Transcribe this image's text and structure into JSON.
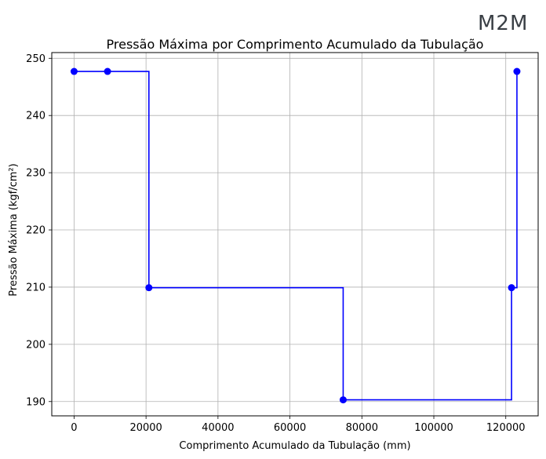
{
  "logo": {
    "text": "M2M"
  },
  "chart_data": {
    "type": "line",
    "drawstyle": "steps-post",
    "title": "Pressão Máxima por Comprimento Acumulado da Tubulação",
    "xlabel": "Comprimento Acumulado da Tubulação (mm)",
    "ylabel": "Pressão Máxima (kgf/cm²)",
    "xlim": [
      -6200,
      129000
    ],
    "ylim": [
      187.5,
      251
    ],
    "xticks": [
      0,
      20000,
      40000,
      60000,
      80000,
      100000,
      120000
    ],
    "xtick_labels": [
      "0",
      "20000",
      "40000",
      "60000",
      "80000",
      "100000",
      "120000"
    ],
    "yticks": [
      190,
      200,
      210,
      220,
      230,
      240,
      250
    ],
    "ytick_labels": [
      "190",
      "200",
      "210",
      "220",
      "230",
      "240",
      "250"
    ],
    "grid": true,
    "series": [
      {
        "color": "#0000ff",
        "marker": "circle",
        "points": [
          {
            "x": 0,
            "y": 247.7
          },
          {
            "x": 9300,
            "y": 247.7
          },
          {
            "x": 20800,
            "y": 209.9
          },
          {
            "x": 74800,
            "y": 190.3
          },
          {
            "x": 121600,
            "y": 209.9
          },
          {
            "x": 123100,
            "y": 247.7
          }
        ]
      }
    ],
    "step_segments_x": [
      0,
      9300,
      20800,
      74800,
      121600,
      123100
    ]
  }
}
